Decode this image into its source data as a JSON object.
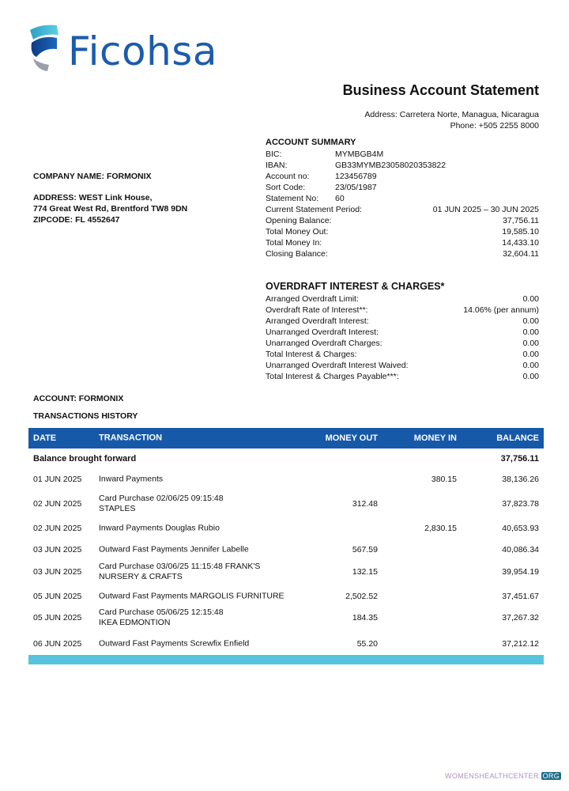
{
  "brand": {
    "name": "Ficohsa",
    "colors": {
      "primary": "#1b5cac",
      "accent": "#58c3dc"
    }
  },
  "header": {
    "title": "Business Account Statement",
    "address": "Address: Carretera Norte, Managua, Nicaragua",
    "phone": "Phone:  +505 2255 8000"
  },
  "company": {
    "name": "COMPANY NAME: FORMONIX",
    "address1": "ADDRESS: WEST Link House,",
    "address2": "774 Great West Rd, Brentford TW8 9DN",
    "zipcode": "ZIPCODE: FL 4552647"
  },
  "summary": {
    "title": "ACCOUNT SUMMARY",
    "short": [
      {
        "label": "BIC:",
        "value": "MYMBGB4M"
      },
      {
        "label": "IBAN:",
        "value": "GB33MYMB23058020353822"
      },
      {
        "label": "Account no:",
        "value": "123456789"
      },
      {
        "label": "Sort Code:",
        "value": "23/05/1987"
      },
      {
        "label": "Statement No:",
        "value": "60"
      }
    ],
    "long": [
      {
        "label": "Current Statement Period:",
        "value": "01 JUN 2025 – 30 JUN 2025"
      },
      {
        "label": "Opening Balance:",
        "value": "37,756.11"
      },
      {
        "label": "Total Money Out:",
        "value": "19,585.10"
      },
      {
        "label": "Total Money In:",
        "value": "14,433.10"
      },
      {
        "label": "Closing Balance:",
        "value": "32,604.11"
      }
    ]
  },
  "overdraft": {
    "title": "OVERDRAFT INTEREST & CHARGES*",
    "rows": [
      {
        "label": "Arranged Overdraft Limit:",
        "value": "0.00"
      },
      {
        "label": "Overdraft Rate of Interest**:",
        "value": "14.06% (per annum)"
      },
      {
        "label": "Arranged Overdraft Interest:",
        "value": "0.00"
      },
      {
        "label": "Unarranged Overdraft Interest:",
        "value": "0.00"
      },
      {
        "label": "Unarranged Overdraft Charges:",
        "value": "0.00"
      },
      {
        "label": "Total Interest & Charges:",
        "value": "0.00"
      },
      {
        "label": "Unarranged Overdraft Interest Waived:",
        "value": "0.00"
      },
      {
        "label": "Total Interest & Charges Payable***:",
        "value": "0.00"
      }
    ]
  },
  "account": {
    "label": "ACCOUNT: FORMONIX",
    "history": "TRANSACTIONS HISTORY"
  },
  "table": {
    "headers": {
      "date": "DATE",
      "tx": "TRANSACTION",
      "out": "MONEY OUT",
      "in": "MONEY IN",
      "bal": "BALANCE"
    },
    "brought_forward": {
      "label": "Balance brought forward",
      "balance": "37,756.11"
    },
    "rows": [
      {
        "date": "01 JUN 2025",
        "tx": "Inward Payments",
        "tx2": "",
        "out": "",
        "in": "380.15",
        "bal": "38,136.26"
      },
      {
        "date": "02 JUN 2025",
        "tx": "Card Purchase 02/06/25 09:15:48",
        "tx2": "STAPLES",
        "out": "312.48",
        "in": "",
        "bal": "37,823.78"
      },
      {
        "date": "02 JUN 2025",
        "tx": "Inward Payments Douglas Rubio",
        "tx2": "",
        "out": "",
        "in": "2,830.15",
        "bal": "40,653.93"
      },
      {
        "date": "03 JUN 2025",
        "tx": "Outward Fast Payments Jennifer Labelle",
        "tx2": "",
        "out": "567.59",
        "in": "",
        "bal": "40,086.34"
      },
      {
        "date": "03 JUN 2025",
        "tx": "Card Purchase 03/06/25 11:15:48 FRANK'S",
        "tx2": "NURSERY & CRAFTS",
        "out": "132.15",
        "in": "",
        "bal": "39,954.19"
      },
      {
        "date": "05 JUN 2025",
        "tx": "Outward Fast Payments MARGOLIS FURNITURE",
        "tx2": "",
        "out": "2,502.52",
        "in": "",
        "bal": "37,451.67"
      },
      {
        "date": "05 JUN 2025",
        "tx": "Card Purchase 05/06/25 12:15:48",
        "tx2": "IKEA EDMONTION",
        "out": "184.35",
        "in": "",
        "bal": "37,267.32"
      },
      {
        "date": "06 JUN 2025",
        "tx": "Outward Fast Payments Screwfix Enfield",
        "tx2": "",
        "out": "55.20",
        "in": "",
        "bal": "37,212.12"
      }
    ]
  },
  "watermark": {
    "text": "WOMENSHEALTHCENTER.",
    "org": "ORG"
  }
}
